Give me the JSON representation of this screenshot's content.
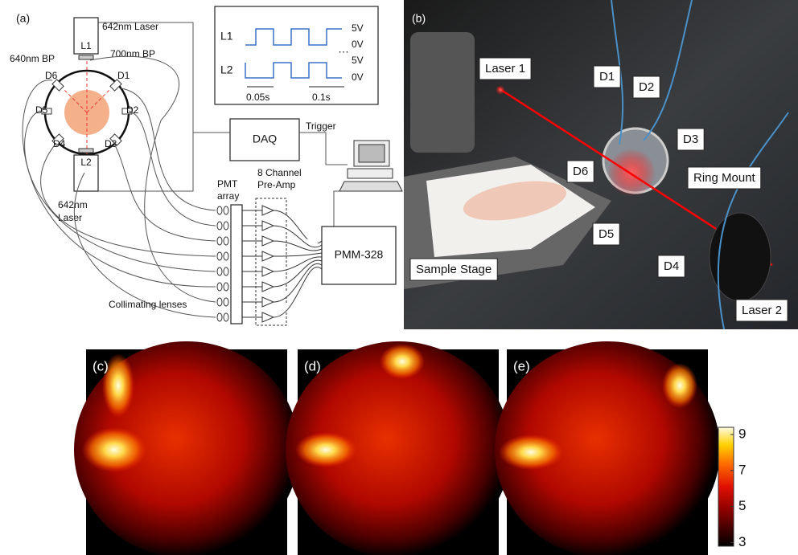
{
  "panel_a": {
    "label": "(a)",
    "laser_top": "642nm Laser",
    "laser_bottom": [
      "642nm",
      "Laser"
    ],
    "l1": "L1",
    "l2": "L2",
    "filter_left": "640nm BP",
    "filter_right": "700nm BP",
    "detectors": [
      "D1",
      "D2",
      "D3",
      "D4",
      "D5",
      "D6"
    ],
    "timing": {
      "rows": [
        "L1",
        "L2"
      ],
      "levels": [
        "5V",
        "0V",
        "5V",
        "0V"
      ],
      "ellipsis": "…",
      "intervals": [
        "0.05s",
        "0.1s"
      ]
    },
    "daq": "DAQ",
    "trigger": "Trigger",
    "pmt_array": [
      "PMT",
      "array"
    ],
    "preamp": [
      "8 Channel",
      "Pre-Amp"
    ],
    "pmm": "PMM-328",
    "lenses": "Collimating lenses"
  },
  "panel_b": {
    "label": "(b)",
    "callouts": [
      "Laser 1",
      "D1",
      "D2",
      "D3",
      "D6",
      "Ring Mount",
      "D5",
      "Sample Stage",
      "D4",
      "Laser 2"
    ]
  },
  "heatmaps": {
    "labels": [
      "(c)",
      "(d)",
      "(e)"
    ]
  },
  "colorbar": {
    "lim": [
      2.8,
      9.4
    ],
    "ticks": [
      9,
      7,
      5,
      3
    ]
  }
}
